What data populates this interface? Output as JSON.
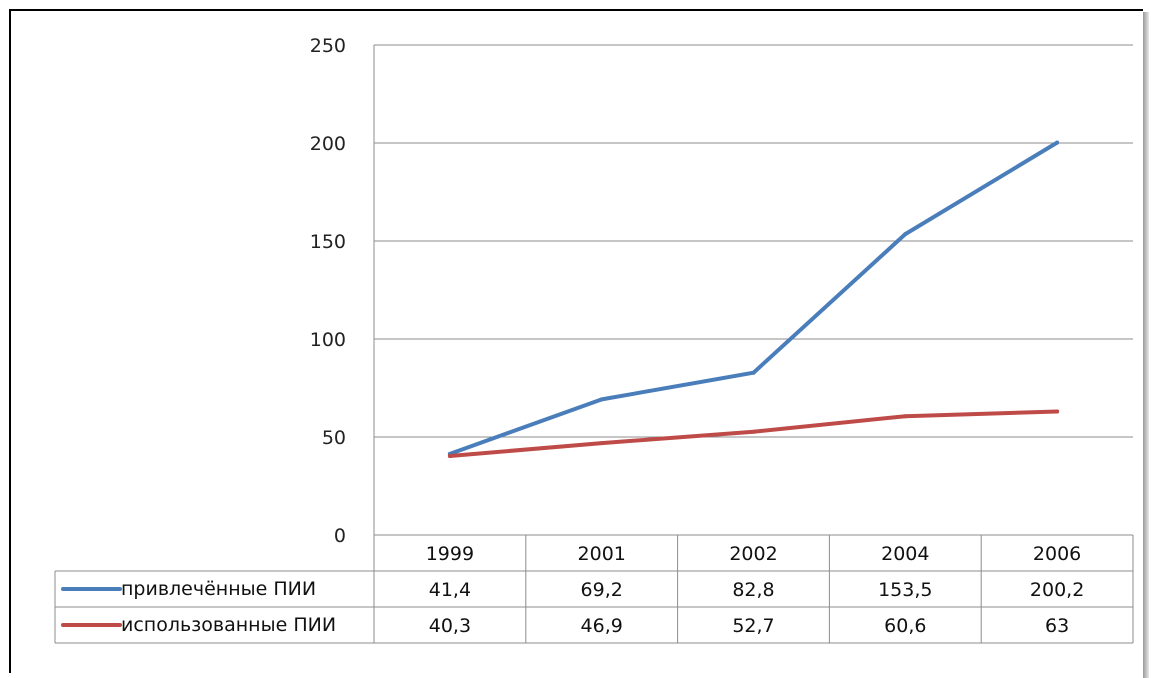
{
  "chart_data": {
    "type": "line",
    "title": "",
    "xlabel": "",
    "ylabel": "",
    "categories": [
      "1999",
      "2001",
      "2002",
      "2004",
      "2006"
    ],
    "ylim": [
      0,
      250
    ],
    "yticks": [
      0,
      50,
      100,
      150,
      200,
      250
    ],
    "grid": true,
    "legend": "data-table",
    "series": [
      {
        "name": "привлечённые ПИИ",
        "color": "#4a7ebb",
        "values": [
          41.4,
          69.2,
          82.8,
          153.5,
          200.2
        ],
        "labels": [
          "41,4",
          "69,2",
          "82,8",
          "153,5",
          "200,2"
        ]
      },
      {
        "name": "использованные ПИИ",
        "color": "#be4b48",
        "values": [
          40.3,
          46.9,
          52.7,
          60.6,
          63
        ],
        "labels": [
          "40,3",
          "46,9",
          "52,7",
          "60,6",
          "63"
        ]
      }
    ]
  }
}
